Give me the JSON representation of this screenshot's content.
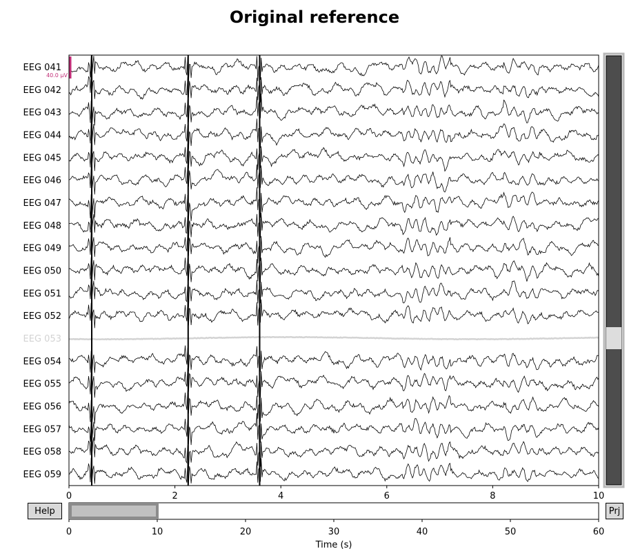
{
  "title": "Original reference",
  "buttons": {
    "help": "Help",
    "projectors": "Prj"
  },
  "chart_data": {
    "type": "line",
    "title": "Original reference",
    "xlabel": "",
    "xlim": [
      0,
      10
    ],
    "x_ticks": [
      0,
      2,
      4,
      6,
      8,
      10
    ],
    "channels": [
      {
        "name": "EEG 041",
        "bad": false
      },
      {
        "name": "EEG 042",
        "bad": false
      },
      {
        "name": "EEG 043",
        "bad": false
      },
      {
        "name": "EEG 044",
        "bad": false
      },
      {
        "name": "EEG 045",
        "bad": false
      },
      {
        "name": "EEG 046",
        "bad": false
      },
      {
        "name": "EEG 047",
        "bad": false
      },
      {
        "name": "EEG 048",
        "bad": false
      },
      {
        "name": "EEG 049",
        "bad": false
      },
      {
        "name": "EEG 050",
        "bad": false
      },
      {
        "name": "EEG 051",
        "bad": false
      },
      {
        "name": "EEG 052",
        "bad": false
      },
      {
        "name": "EEG 053",
        "bad": true
      },
      {
        "name": "EEG 054",
        "bad": false
      },
      {
        "name": "EEG 055",
        "bad": false
      },
      {
        "name": "EEG 056",
        "bad": false
      },
      {
        "name": "EEG 057",
        "bad": false
      },
      {
        "name": "EEG 058",
        "bad": false
      },
      {
        "name": "EEG 059",
        "bad": false
      }
    ],
    "scalebar_label": "40.0 µV",
    "artifact_times": [
      0.43,
      2.25,
      3.6
    ],
    "overview": {
      "xlabel": "Time (s)",
      "xlim": [
        0,
        60
      ],
      "x_ticks": [
        0,
        10,
        20,
        30,
        40,
        50,
        60
      ],
      "view_window": [
        0,
        10
      ]
    },
    "colors": {
      "trace": "#000000",
      "bad_trace": "#d3d3d3",
      "scalebar": "#c22e78",
      "scroll_bg": "#4d4d4d",
      "scroll_thumb": "#dddddd",
      "window_fill": "#c0c0c0"
    }
  }
}
